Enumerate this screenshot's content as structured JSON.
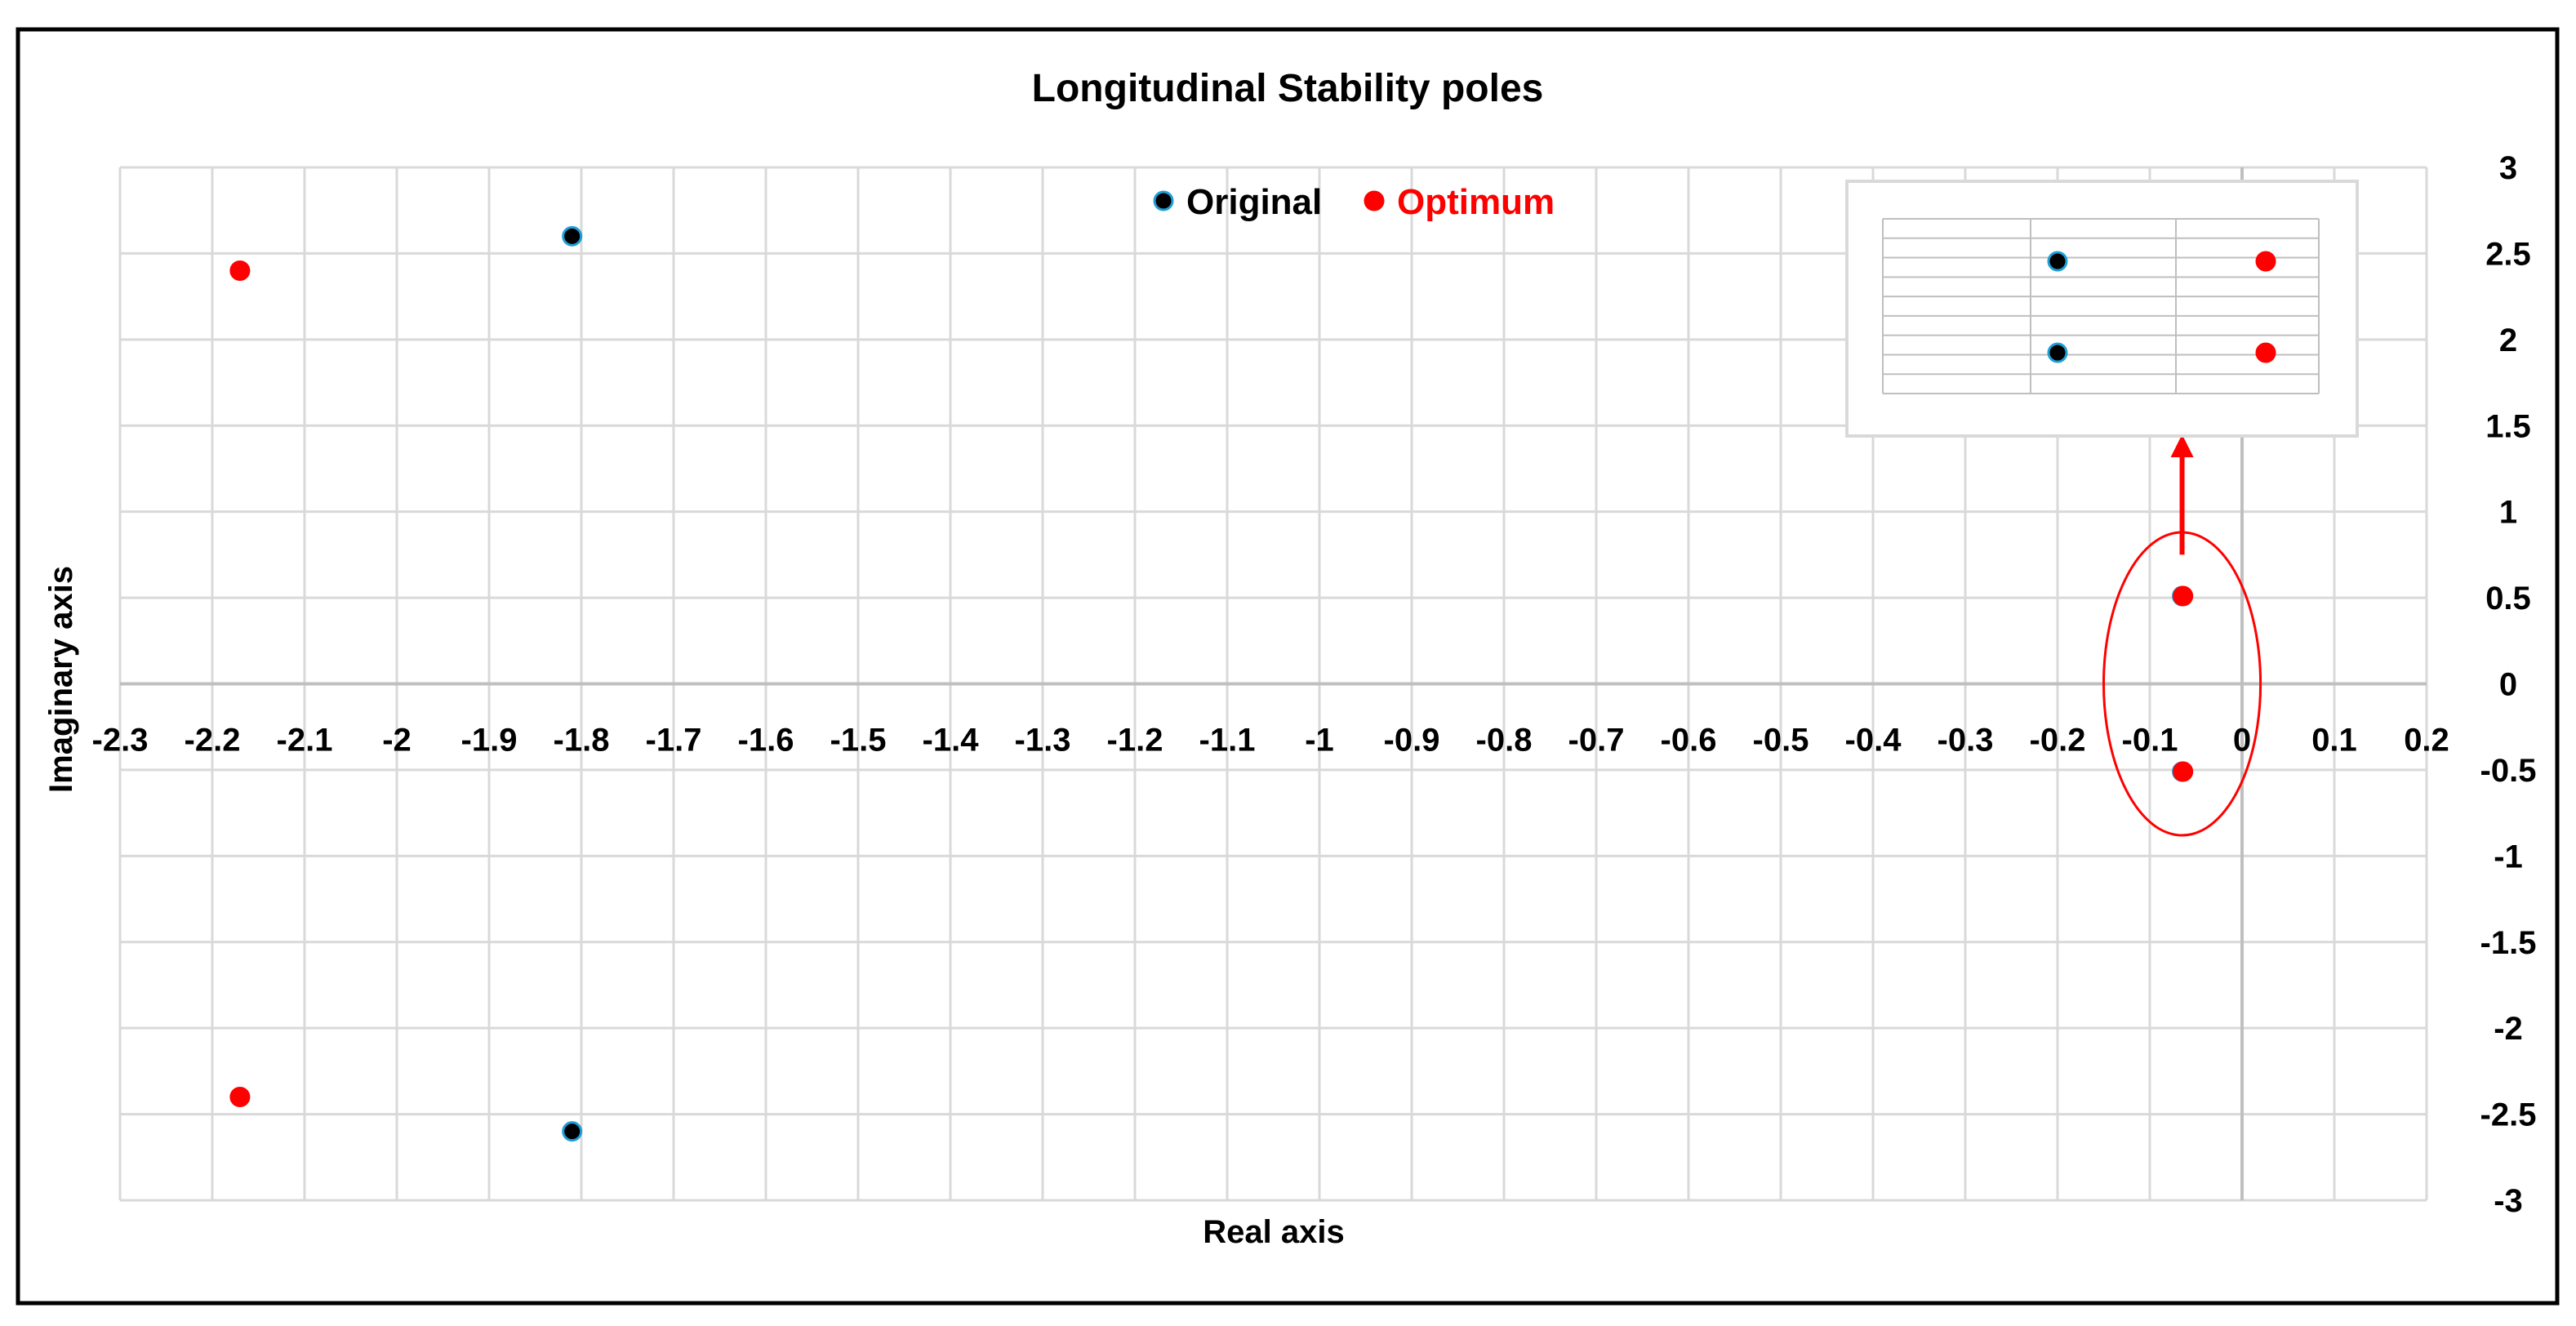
{
  "chart_data": {
    "type": "scatter",
    "title": "Longitudinal Stability poles",
    "xlabel": "Real axis",
    "ylabel": "Imaginary axis",
    "xlim": [
      -2.3,
      0.2
    ],
    "ylim": [
      -3,
      3
    ],
    "x_ticks": [
      -2.3,
      -2.2,
      -2.1,
      -2,
      -1.9,
      -1.8,
      -1.7,
      -1.6,
      -1.5,
      -1.4,
      -1.3,
      -1.2,
      -1.1,
      -1,
      -0.9,
      -0.8,
      -0.7,
      -0.6,
      -0.5,
      -0.4,
      -0.3,
      -0.2,
      -0.1,
      0,
      0.1,
      0.2
    ],
    "y_ticks": [
      3,
      2.5,
      2,
      1.5,
      1,
      0.5,
      0,
      -0.5,
      -1,
      -1.5,
      -2,
      -2.5,
      -3
    ],
    "grid": true,
    "legend_position": "top-center",
    "series": [
      {
        "name": "Original",
        "color": "#000000",
        "edge_color": "#1f9fd6",
        "points": [
          [
            -1.81,
            2.6
          ],
          [
            -1.81,
            -2.6
          ],
          [
            -0.065,
            0.51
          ],
          [
            -0.065,
            -0.51
          ]
        ]
      },
      {
        "name": "Optimum",
        "color": "#ff0000",
        "edge_color": "#ff0000",
        "points": [
          [
            -2.17,
            2.4
          ],
          [
            -2.17,
            -2.4
          ],
          [
            -0.064,
            0.51
          ],
          [
            -0.064,
            -0.51
          ]
        ]
      }
    ],
    "annotations": {
      "highlight_ellipse": {
        "center": [
          -0.065,
          0
        ],
        "semi_axes": [
          0.085,
          0.88
        ],
        "color": "#ff0000"
      },
      "arrow": {
        "from": [
          -0.065,
          0.75
        ],
        "to": [
          -0.065,
          1.43
        ],
        "color": "#ff0000"
      },
      "inset": {
        "description_points": [
          {
            "series": "Original",
            "row": 0
          },
          {
            "series": "Original",
            "row": 1
          },
          {
            "series": "Optimum",
            "row": 0
          },
          {
            "series": "Optimum",
            "row": 1
          }
        ]
      }
    }
  }
}
